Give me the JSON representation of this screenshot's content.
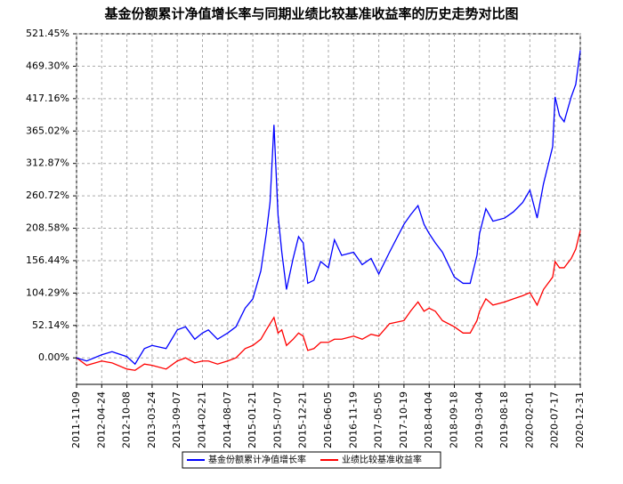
{
  "chart_data": {
    "type": "line",
    "title": "基金份额累计净值增长率与同期业绩比较基准收益率的历史走势对比图",
    "x": [
      "2011-11-09",
      "2012-01-15",
      "2012-04-24",
      "2012-07-01",
      "2012-10-08",
      "2012-12-01",
      "2013-02-01",
      "2013-03-24",
      "2013-06-25",
      "2013-09-07",
      "2013-11-01",
      "2014-01-01",
      "2014-02-21",
      "2014-04-01",
      "2014-06-01",
      "2014-08-07",
      "2014-10-01",
      "2014-12-01",
      "2015-01-21",
      "2015-03-15",
      "2015-04-20",
      "2015-05-15",
      "2015-06-10",
      "2015-07-07",
      "2015-08-01",
      "2015-09-01",
      "2015-10-15",
      "2015-11-20",
      "2015-12-21",
      "2016-01-20",
      "2016-03-01",
      "2016-04-15",
      "2016-06-05",
      "2016-07-15",
      "2016-09-01",
      "2016-11-19",
      "2017-01-15",
      "2017-03-15",
      "2017-05-05",
      "2017-07-15",
      "2017-10-19",
      "2017-12-01",
      "2018-01-20",
      "2018-03-01",
      "2018-04-04",
      "2018-05-15",
      "2018-07-01",
      "2018-09-18",
      "2018-11-15",
      "2019-01-01",
      "2019-02-15",
      "2019-03-04",
      "2019-04-15",
      "2019-06-01",
      "2019-08-18",
      "2019-10-15",
      "2019-12-15",
      "2020-02-01",
      "2020-03-20",
      "2020-05-01",
      "2020-07-01",
      "2020-07-17",
      "2020-08-15",
      "2020-09-15",
      "2020-11-01",
      "2020-12-01",
      "2020-12-31"
    ],
    "series": [
      {
        "name": "基金份额累计净值增长率",
        "color": "#0000ff",
        "values": [
          0,
          -5,
          5,
          10,
          2,
          -10,
          15,
          20,
          15,
          45,
          50,
          30,
          40,
          45,
          30,
          40,
          50,
          80,
          95,
          140,
          200,
          250,
          375,
          230,
          170,
          110,
          160,
          195,
          185,
          120,
          125,
          155,
          145,
          190,
          165,
          170,
          150,
          160,
          135,
          170,
          215,
          230,
          245,
          215,
          200,
          185,
          170,
          130,
          120,
          120,
          165,
          200,
          240,
          220,
          225,
          235,
          250,
          270,
          225,
          280,
          340,
          420,
          390,
          380,
          420,
          440,
          495
        ]
      },
      {
        "name": "业绩比较基准收益率",
        "color": "#ff0000",
        "values": [
          0,
          -12,
          -5,
          -8,
          -18,
          -20,
          -10,
          -12,
          -18,
          -5,
          0,
          -8,
          -5,
          -5,
          -10,
          -5,
          0,
          15,
          20,
          30,
          45,
          55,
          65,
          40,
          45,
          20,
          30,
          40,
          35,
          12,
          15,
          25,
          25,
          30,
          30,
          35,
          30,
          38,
          35,
          55,
          60,
          75,
          90,
          75,
          80,
          75,
          60,
          50,
          40,
          40,
          60,
          75,
          95,
          85,
          90,
          95,
          100,
          105,
          85,
          110,
          130,
          155,
          145,
          145,
          160,
          175,
          205
        ]
      }
    ],
    "xlim": [
      "2011-11-09",
      "2020-12-31"
    ],
    "xticks": [
      "2011-11-09",
      "2012-04-24",
      "2012-10-08",
      "2013-03-24",
      "2013-09-07",
      "2014-02-21",
      "2014-08-07",
      "2015-01-21",
      "2015-07-07",
      "2015-12-21",
      "2016-06-05",
      "2016-11-19",
      "2017-05-05",
      "2017-10-19",
      "2018-04-04",
      "2018-09-18",
      "2019-03-04",
      "2019-08-18",
      "2020-02-01",
      "2020-07-17",
      "2020-12-31"
    ],
    "ylim": [
      -42.6,
      521.45
    ],
    "yticks": [
      {
        "value": 0,
        "label": "0.00%"
      },
      {
        "value": 52.14,
        "label": "52.14%"
      },
      {
        "value": 104.29,
        "label": "104.29%"
      },
      {
        "value": 156.44,
        "label": "156.44%"
      },
      {
        "value": 208.58,
        "label": "208.58%"
      },
      {
        "value": 260.72,
        "label": "260.72%"
      },
      {
        "value": 312.87,
        "label": "312.87%"
      },
      {
        "value": 365.02,
        "label": "365.02%"
      },
      {
        "value": 417.16,
        "label": "417.16%"
      },
      {
        "value": 469.3,
        "label": "469.30%"
      },
      {
        "value": 521.45,
        "label": "521.45%"
      }
    ],
    "grid": true
  }
}
